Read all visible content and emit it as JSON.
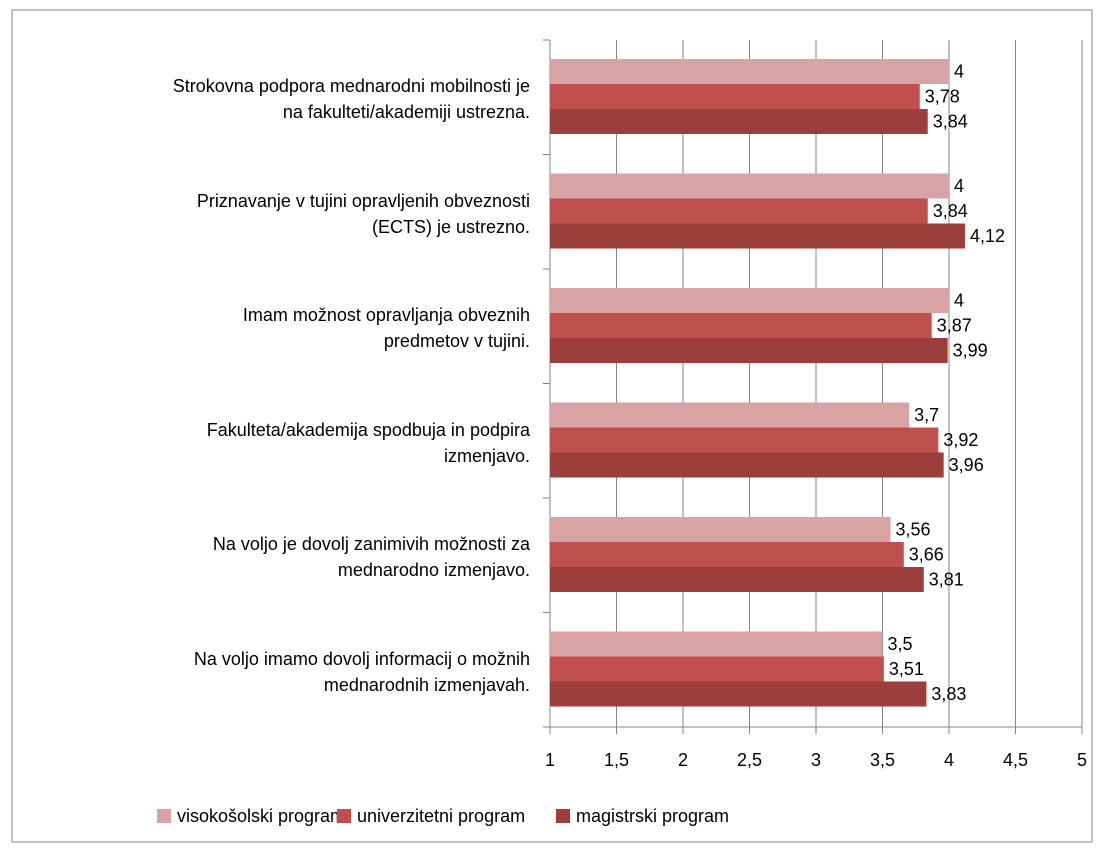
{
  "chart_data": {
    "type": "bar",
    "orientation": "horizontal",
    "categories": [
      "Strokovna podpora mednarodni mobilnosti je\nna fakulteti/akademiji ustrezna.",
      "Priznavanje v tujini opravljenih obveznosti\n(ECTS) je ustrezno.",
      "Imam možnost opravljanja obveznih\npredmetov v tujini.",
      "Fakulteta/akademija spodbuja in podpira\nizmenjavo.",
      "Na voljo je dovolj zanimivih možnosti za\nmednarodno izmenjavo.",
      "Na voljo imamo dovolj informacij o možnih\nmednarodnih izmenjavah."
    ],
    "series": [
      {
        "name": "visokošolski program",
        "color": "#d9a3a4",
        "values": [
          4,
          4,
          4,
          3.7,
          3.56,
          3.5
        ],
        "value_labels": [
          "4",
          "4",
          "4",
          "3,7",
          "3,56",
          "3,5"
        ]
      },
      {
        "name": "univerzitetni program",
        "color": "#c0504d",
        "values": [
          3.78,
          3.84,
          3.87,
          3.92,
          3.66,
          3.51
        ],
        "value_labels": [
          "3,78",
          "3,84",
          "3,87",
          "3,92",
          "3,66",
          "3,51"
        ]
      },
      {
        "name": "magistrski program",
        "color": "#9c3e3b",
        "values": [
          3.84,
          4.12,
          3.99,
          3.96,
          3.81,
          3.83
        ],
        "value_labels": [
          "3,84",
          "4,12",
          "3,99",
          "3,96",
          "3,81",
          "3,83"
        ]
      }
    ],
    "xlim": [
      1,
      5
    ],
    "xticks": [
      1,
      {
        "value": 1.5,
        "label": "1,5"
      },
      2,
      {
        "value": 2.5,
        "label": "2,5"
      },
      3,
      {
        "value": 3.5,
        "label": "3,5"
      },
      4,
      {
        "value": 4.5,
        "label": "4,5"
      },
      5
    ],
    "grid": true,
    "legend": "bottom"
  }
}
